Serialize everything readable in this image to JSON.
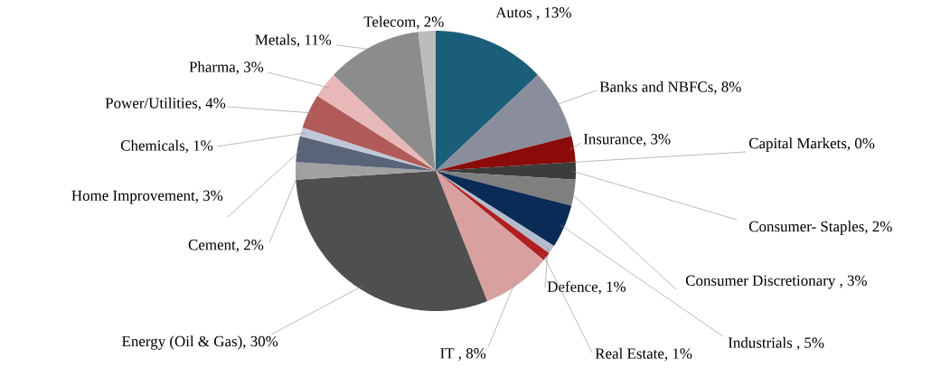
{
  "chart_data": {
    "type": "pie",
    "categories": [
      "Autos ",
      "Banks and NBFCs",
      "Insurance",
      "Capital Markets",
      "Consumer- Staples",
      "Consumer Discretionary ",
      "Industrials ",
      "Defence",
      "Real Estate",
      "IT ",
      "Energy (Oil & Gas)",
      "Cement",
      "Home Improvement",
      "Chemicals",
      "Power/Utilities",
      "Pharma",
      "Metals",
      "Telecom"
    ],
    "values": [
      13,
      8,
      3,
      0,
      2,
      3,
      5,
      1,
      1,
      8,
      30,
      2,
      3,
      1,
      4,
      3,
      11,
      2
    ],
    "value_labels": [
      ", 13%",
      ", 8%",
      ", 3%",
      ", 0%",
      ", 2%",
      ", 3%",
      ", 5%",
      ", 1%",
      ", 1%",
      ", 8%",
      ", 30%",
      ", 2%",
      ", 3%",
      ", 1%",
      ", 4%",
      ", 3%",
      ", 11%",
      ", 2%"
    ],
    "colors": [
      "#1b5e7a",
      "#8a8e9c",
      "#8b0a0a",
      "#d8c8a8",
      "#3c3c3c",
      "#7f7f7f",
      "#0a2b55",
      "#b4bccc",
      "#b02020",
      "#d9a0a0",
      "#4f4f4f",
      "#a0a0a0",
      "#5a6478",
      "#c0c8d8",
      "#b05a5a",
      "#e8b8b8",
      "#8c8c8c",
      "#bcbcbc"
    ]
  }
}
